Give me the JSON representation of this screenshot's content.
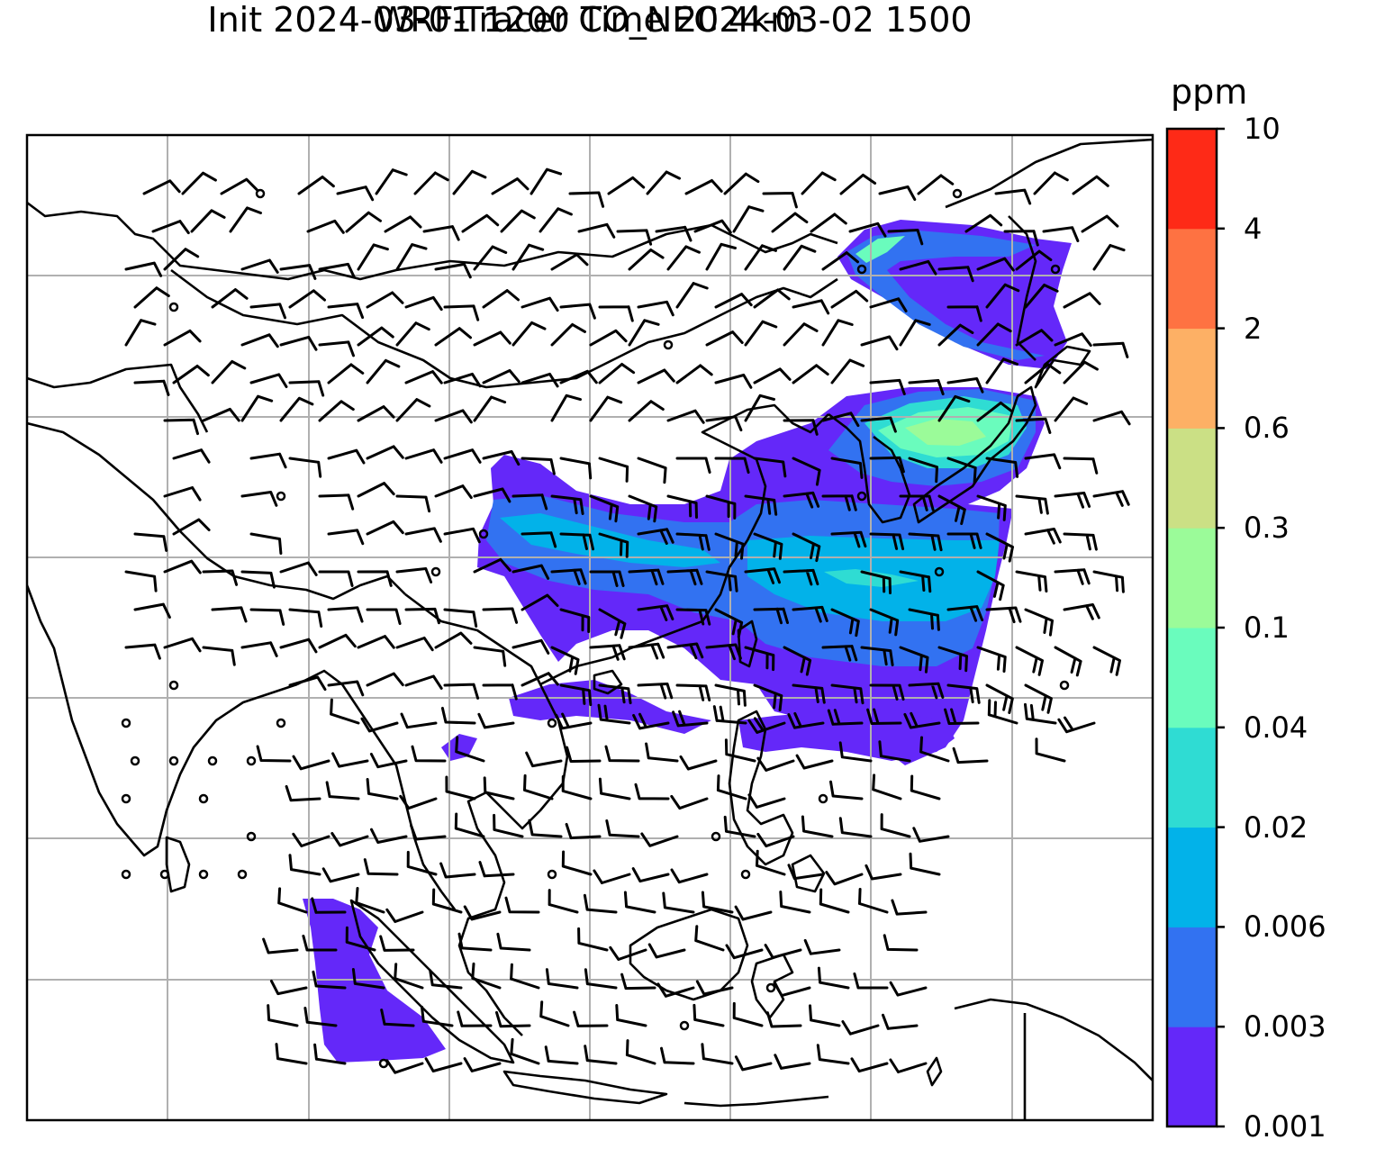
{
  "title": {
    "line1": "WRF-Tracer CO_NEC 4km",
    "line2": "Init 2024-03-01 1200 Time 2024-03-02 1500"
  },
  "colorbar": {
    "unit": "ppm",
    "levels": [
      "0.001",
      "0.003",
      "0.006",
      "0.02",
      "0.04",
      "0.1",
      "0.3",
      "0.6",
      "2",
      "4",
      "10"
    ],
    "colors": [
      "#6428f9",
      "#3272f1",
      "#02b2e9",
      "#2fdcd3",
      "#6afcbd",
      "#9bfb99",
      "#cbe085",
      "#fdb065",
      "#fe7242",
      "#fe2a17"
    ]
  },
  "map": {
    "background": "#ffffff",
    "coastline_color": "#000000",
    "gridline_color": "#b0b0b0",
    "wind_barb_color": "#000000"
  }
}
